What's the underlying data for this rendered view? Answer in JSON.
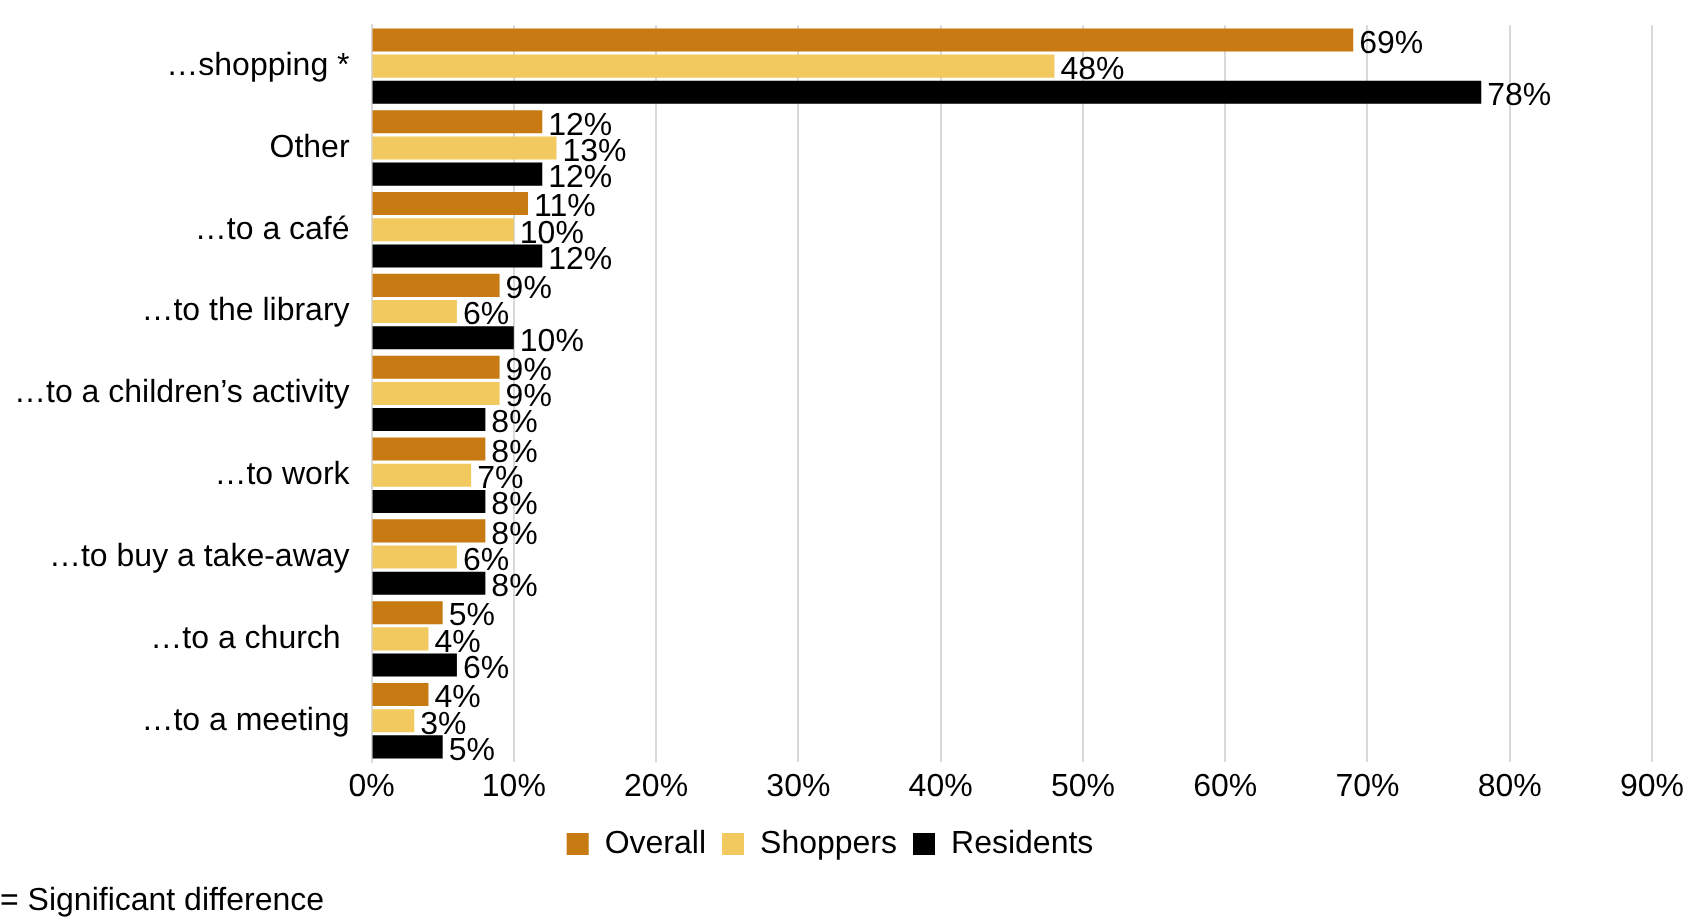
{
  "chart_data": {
    "type": "bar",
    "orientation": "horizontal",
    "categories": [
      "…shopping *",
      "Other",
      "…to a café",
      "…to the library",
      "…to a children’s activity",
      "…to work",
      "…to buy a take-away",
      "…to a church ",
      "…to a meeting"
    ],
    "series": [
      {
        "name": "Overall",
        "color": "#c87a12",
        "values": [
          69,
          12,
          11,
          9,
          9,
          8,
          8,
          5,
          4
        ],
        "value_labels": [
          "69%",
          "12%",
          "11%",
          "9%",
          "9%",
          "8%",
          "8%",
          "5%",
          "4%"
        ]
      },
      {
        "name": "Shoppers",
        "color": "#f2c95e",
        "values": [
          48,
          13,
          10,
          6,
          9,
          7,
          6,
          4,
          3
        ],
        "value_labels": [
          "48%",
          "13%",
          "10%",
          "6%",
          "9%",
          "7%",
          "6%",
          "4%",
          "3%"
        ]
      },
      {
        "name": "Residents",
        "color": "#000000",
        "values": [
          78,
          12,
          12,
          10,
          8,
          8,
          8,
          6,
          5
        ],
        "value_labels": [
          "78%",
          "12%",
          "12%",
          "10%",
          "8%",
          "8%",
          "8%",
          "6%",
          "5%"
        ]
      }
    ],
    "xlim": [
      0,
      90
    ],
    "xticks": [
      {
        "value": 0,
        "label": "0%"
      },
      {
        "value": 10,
        "label": "10%"
      },
      {
        "value": 20,
        "label": "20%"
      },
      {
        "value": 30,
        "label": "30%"
      },
      {
        "value": 40,
        "label": "40%"
      },
      {
        "value": 50,
        "label": "50%"
      },
      {
        "value": 60,
        "label": "60%"
      },
      {
        "value": 70,
        "label": "70%"
      },
      {
        "value": 80,
        "label": "80%"
      },
      {
        "value": 90,
        "label": "90%"
      }
    ],
    "grid": "x",
    "legend": "bottom",
    "annotations": [
      "= Significant difference"
    ]
  }
}
